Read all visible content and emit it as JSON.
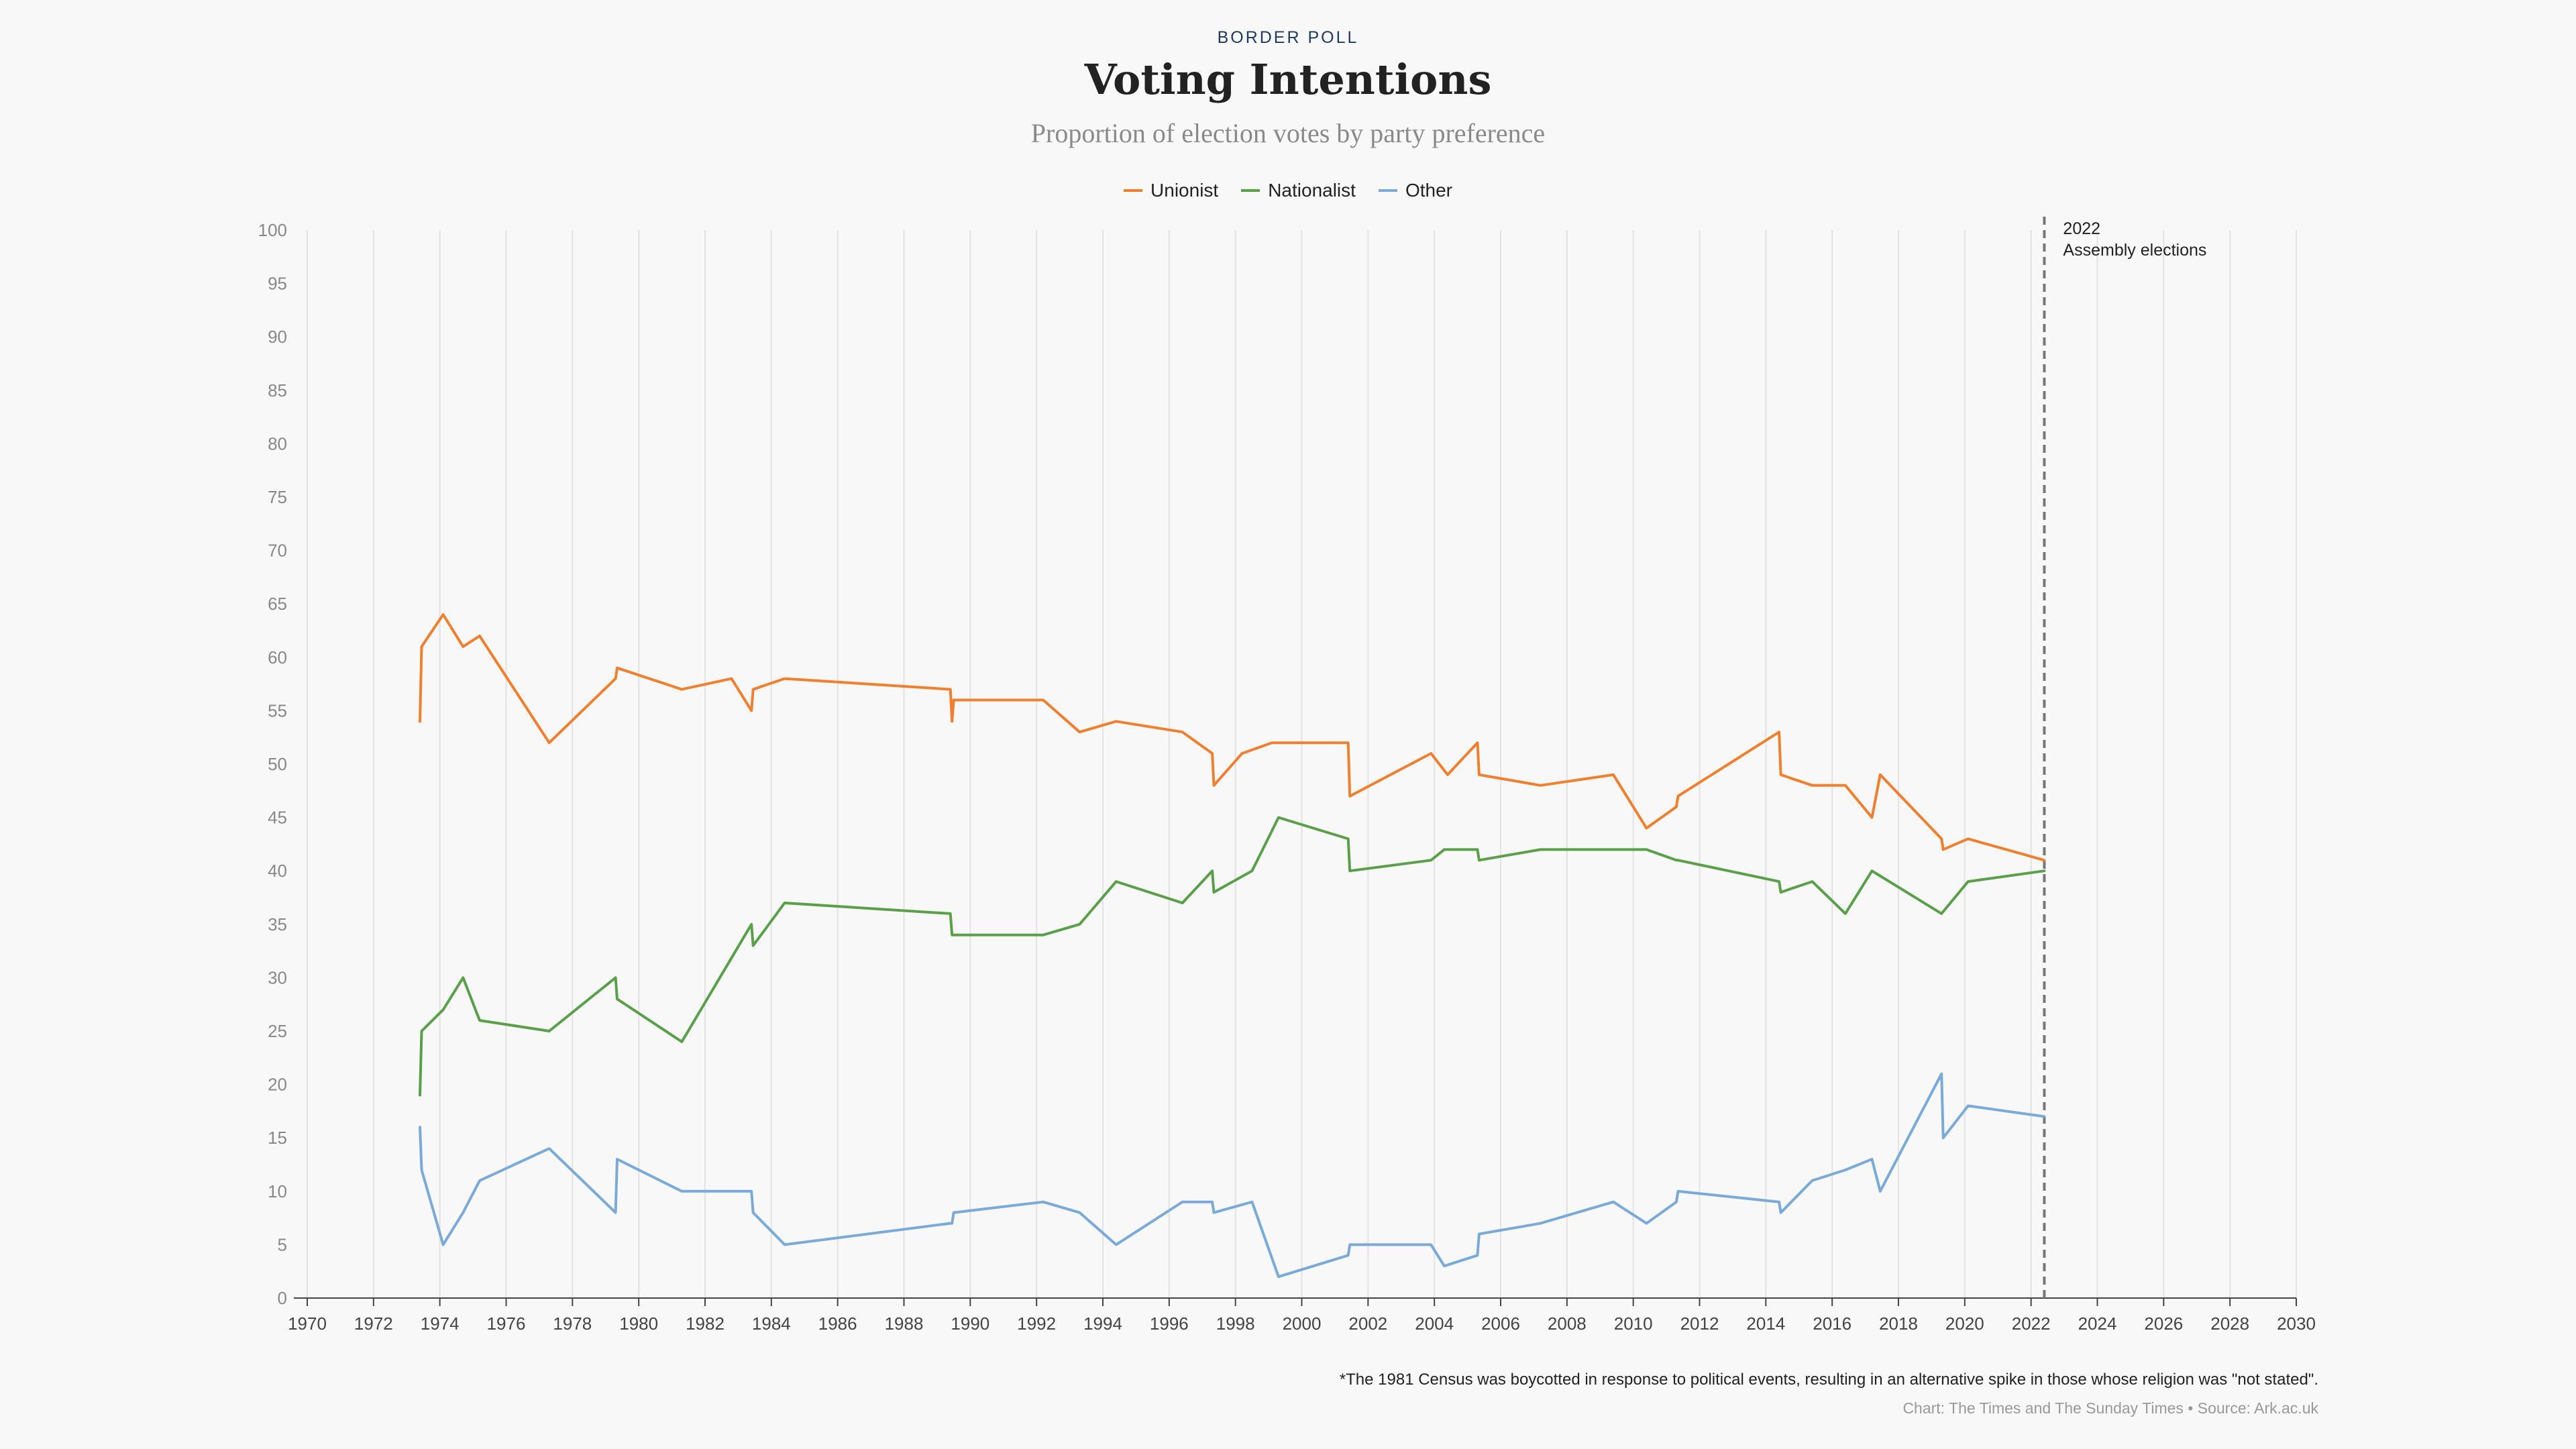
{
  "header": {
    "kicker": "BORDER POLL",
    "title": "Voting Intentions",
    "subtitle": "Proportion of election votes by party preference"
  },
  "footer": {
    "footnote": "*The 1981 Census was boycotted in response to political events, resulting in an alternative spike in those whose religion was \"not stated\".",
    "credit": "Chart: The Times and The Sunday Times • Source: Ark.ac.uk"
  },
  "chart_data": {
    "type": "line",
    "title": "Voting Intentions",
    "xlabel": "",
    "ylabel": "",
    "xlim": [
      1970,
      2030
    ],
    "ylim": [
      0,
      100
    ],
    "x_ticks": [
      1970,
      1972,
      1974,
      1976,
      1978,
      1980,
      1982,
      1984,
      1986,
      1988,
      1990,
      1992,
      1994,
      1996,
      1998,
      2000,
      2002,
      2004,
      2006,
      2008,
      2010,
      2012,
      2014,
      2016,
      2018,
      2020,
      2022,
      2024,
      2026,
      2028,
      2030
    ],
    "y_ticks": [
      0,
      5,
      10,
      15,
      20,
      25,
      30,
      35,
      40,
      45,
      50,
      55,
      60,
      65,
      70,
      75,
      80,
      85,
      90,
      95,
      100
    ],
    "grid": "vertical",
    "legend_position": "top-center",
    "annotation": {
      "x": 2022.4,
      "label_year": "2022",
      "label_text": "Assembly elections",
      "style": "dashed"
    },
    "series": [
      {
        "name": "Unionist",
        "color": "#f08030",
        "points": [
          [
            1973.4,
            54
          ],
          [
            1973.45,
            61
          ],
          [
            1974.1,
            64
          ],
          [
            1974.7,
            61
          ],
          [
            1975.2,
            62
          ],
          [
            1977.3,
            52
          ],
          [
            1979.3,
            58
          ],
          [
            1979.35,
            59
          ],
          [
            1981.3,
            57
          ],
          [
            1982.8,
            58
          ],
          [
            1983.4,
            55
          ],
          [
            1983.45,
            57
          ],
          [
            1984.4,
            58
          ],
          [
            1989.4,
            57
          ],
          [
            1989.45,
            54
          ],
          [
            1989.5,
            56
          ],
          [
            1992.2,
            56
          ],
          [
            1993.3,
            53
          ],
          [
            1994.4,
            54
          ],
          [
            1996.4,
            53
          ],
          [
            1997.3,
            51
          ],
          [
            1997.35,
            48
          ],
          [
            1998.2,
            51
          ],
          [
            1999.1,
            52
          ],
          [
            2001.4,
            52
          ],
          [
            2001.45,
            47
          ],
          [
            2003.9,
            51
          ],
          [
            2004.4,
            49
          ],
          [
            2005.3,
            52
          ],
          [
            2005.35,
            49
          ],
          [
            2007.2,
            48
          ],
          [
            2009.4,
            49
          ],
          [
            2010.4,
            44
          ],
          [
            2011.3,
            46
          ],
          [
            2011.35,
            47
          ],
          [
            2014.4,
            53
          ],
          [
            2014.45,
            49
          ],
          [
            2015.4,
            48
          ],
          [
            2016.4,
            48
          ],
          [
            2017.2,
            45
          ],
          [
            2017.45,
            49
          ],
          [
            2019.3,
            43
          ],
          [
            2019.35,
            42
          ],
          [
            2020.1,
            43
          ],
          [
            2022.4,
            41
          ]
        ]
      },
      {
        "name": "Nationalist",
        "color": "#5aa04a",
        "points": [
          [
            1973.4,
            19
          ],
          [
            1973.45,
            25
          ],
          [
            1974.1,
            27
          ],
          [
            1974.7,
            30
          ],
          [
            1975.2,
            26
          ],
          [
            1977.3,
            25
          ],
          [
            1979.3,
            30
          ],
          [
            1979.35,
            28
          ],
          [
            1981.3,
            24
          ],
          [
            1983.4,
            35
          ],
          [
            1983.45,
            33
          ],
          [
            1984.4,
            37
          ],
          [
            1989.4,
            36
          ],
          [
            1989.45,
            34
          ],
          [
            1992.2,
            34
          ],
          [
            1993.3,
            35
          ],
          [
            1994.4,
            39
          ],
          [
            1996.4,
            37
          ],
          [
            1997.3,
            40
          ],
          [
            1997.35,
            38
          ],
          [
            1998.5,
            40
          ],
          [
            1999.3,
            45
          ],
          [
            2001.4,
            43
          ],
          [
            2001.45,
            40
          ],
          [
            2003.9,
            41
          ],
          [
            2004.3,
            42
          ],
          [
            2005.3,
            42
          ],
          [
            2005.35,
            41
          ],
          [
            2007.2,
            42
          ],
          [
            2009.4,
            42
          ],
          [
            2010.4,
            42
          ],
          [
            2011.3,
            41
          ],
          [
            2011.35,
            41
          ],
          [
            2014.4,
            39
          ],
          [
            2014.45,
            38
          ],
          [
            2015.4,
            39
          ],
          [
            2016.4,
            36
          ],
          [
            2017.2,
            40
          ],
          [
            2019.3,
            36
          ],
          [
            2020.1,
            39
          ],
          [
            2022.4,
            40
          ]
        ]
      },
      {
        "name": "Other",
        "color": "#7aaad8",
        "points": [
          [
            1973.4,
            16
          ],
          [
            1973.45,
            12
          ],
          [
            1974.1,
            5
          ],
          [
            1974.7,
            8
          ],
          [
            1975.2,
            11
          ],
          [
            1977.3,
            14
          ],
          [
            1979.3,
            8
          ],
          [
            1979.35,
            13
          ],
          [
            1981.3,
            10
          ],
          [
            1982.8,
            10
          ],
          [
            1983.4,
            10
          ],
          [
            1983.45,
            8
          ],
          [
            1984.4,
            5
          ],
          [
            1989.4,
            7
          ],
          [
            1989.45,
            7
          ],
          [
            1989.5,
            8
          ],
          [
            1992.2,
            9
          ],
          [
            1993.3,
            8
          ],
          [
            1994.4,
            5
          ],
          [
            1996.4,
            9
          ],
          [
            1997.3,
            9
          ],
          [
            1997.35,
            8
          ],
          [
            1998.5,
            9
          ],
          [
            1999.3,
            2
          ],
          [
            2001.4,
            4
          ],
          [
            2001.45,
            5
          ],
          [
            2003.9,
            5
          ],
          [
            2004.3,
            3
          ],
          [
            2005.3,
            4
          ],
          [
            2005.35,
            6
          ],
          [
            2007.2,
            7
          ],
          [
            2009.4,
            9
          ],
          [
            2010.4,
            7
          ],
          [
            2011.3,
            9
          ],
          [
            2011.35,
            10
          ],
          [
            2014.4,
            9
          ],
          [
            2014.45,
            8
          ],
          [
            2015.4,
            11
          ],
          [
            2016.4,
            12
          ],
          [
            2017.2,
            13
          ],
          [
            2017.45,
            10
          ],
          [
            2019.3,
            21
          ],
          [
            2019.35,
            15
          ],
          [
            2020.1,
            18
          ],
          [
            2022.4,
            17
          ]
        ]
      }
    ]
  }
}
